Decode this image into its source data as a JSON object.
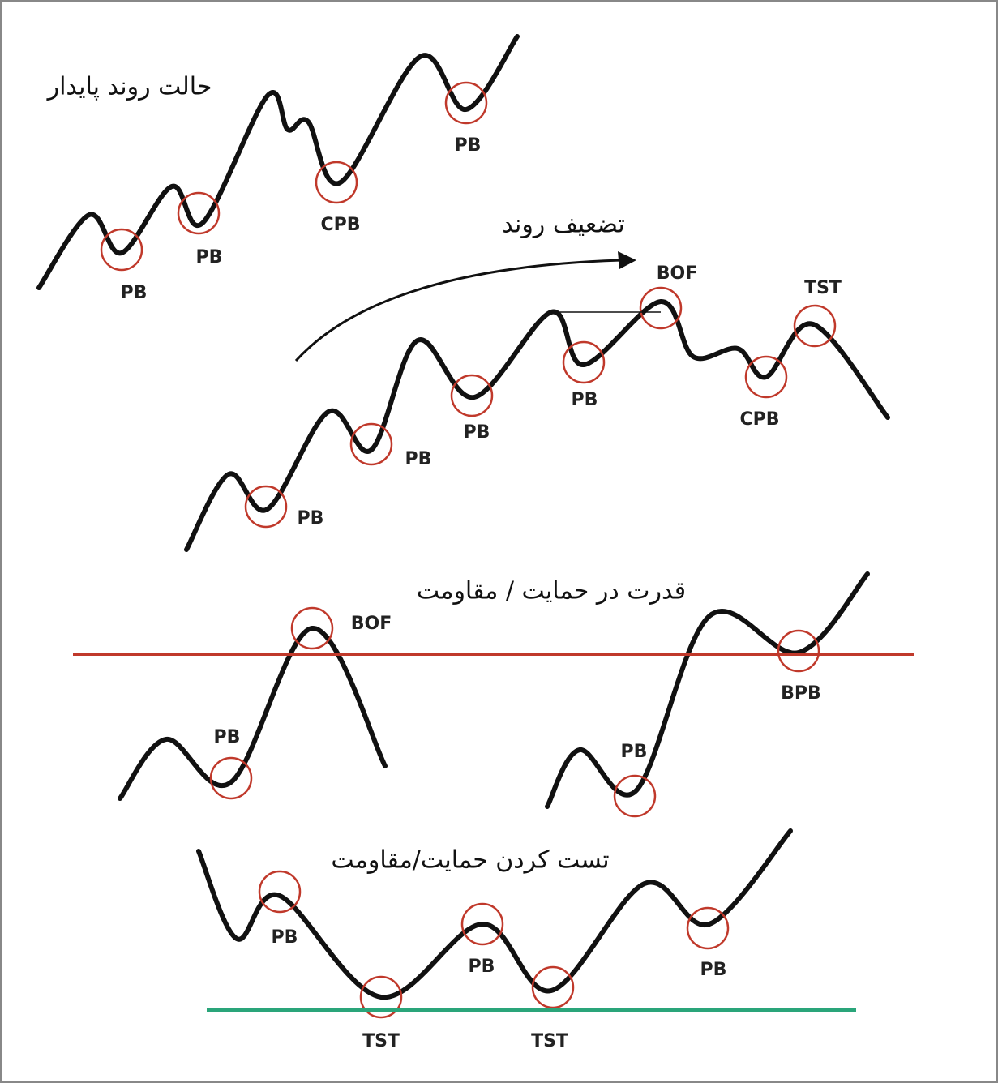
{
  "sections": [
    {
      "title": "حالت روند پایدار",
      "labels": [
        "PB",
        "PB",
        "CPB",
        "PB"
      ]
    },
    {
      "title": "تضعیف روند",
      "labels": [
        "PB",
        "PB",
        "PB",
        "PB",
        "BOF",
        "CPB",
        "TST"
      ]
    },
    {
      "title": "قدرت در حمایت / مقاومت",
      "labels": [
        "BOF",
        "PB",
        "PB",
        "BPB"
      ]
    },
    {
      "title": "تست کردن حمایت/مقاومت",
      "labels": [
        "PB",
        "TST",
        "PB",
        "TST",
        "PB"
      ]
    }
  ]
}
